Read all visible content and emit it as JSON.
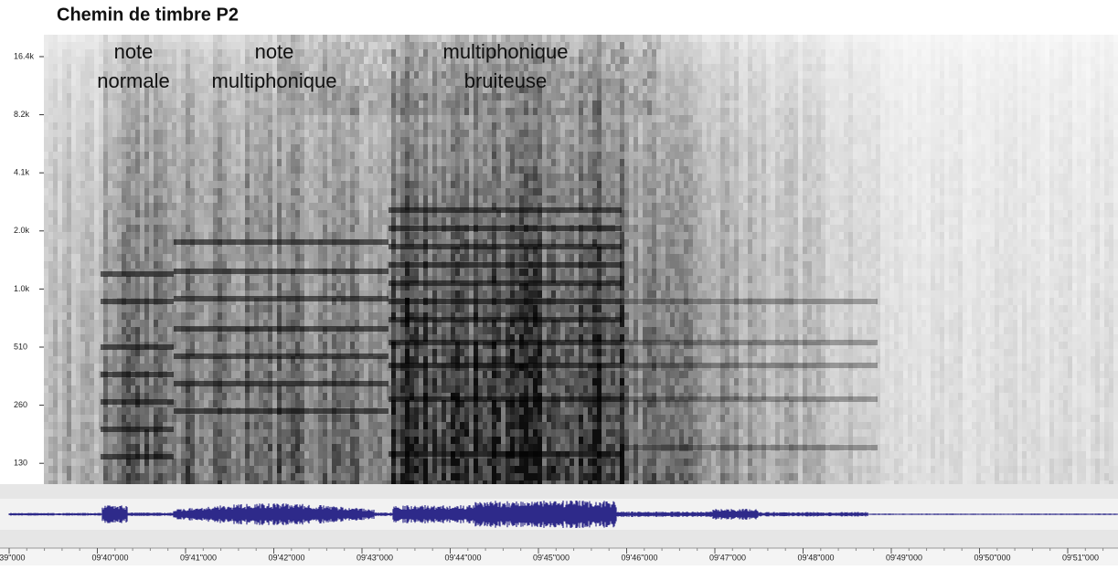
{
  "title": "Chemin de timbre P2",
  "annotations": [
    [
      "note",
      "normale"
    ],
    [
      "note",
      "multiphonique"
    ],
    [
      "multiphonique",
      "bruiteuse"
    ]
  ],
  "frequency_axis": {
    "labels": [
      "16.4k",
      "8.2k",
      "4.1k",
      "2.0k",
      "1.0k",
      "510",
      "260",
      "130"
    ]
  },
  "time_axis": {
    "labels": [
      "9'39\"000",
      "09'40\"000",
      "09'41\"000",
      "09'42\"000",
      "09'43\"000",
      "09'44\"000",
      "09'45\"000",
      "09'46\"000",
      "09'47\"000",
      "09'48\"000",
      "09'49\"000",
      "09'50\"000",
      "09'51\"000"
    ]
  }
}
